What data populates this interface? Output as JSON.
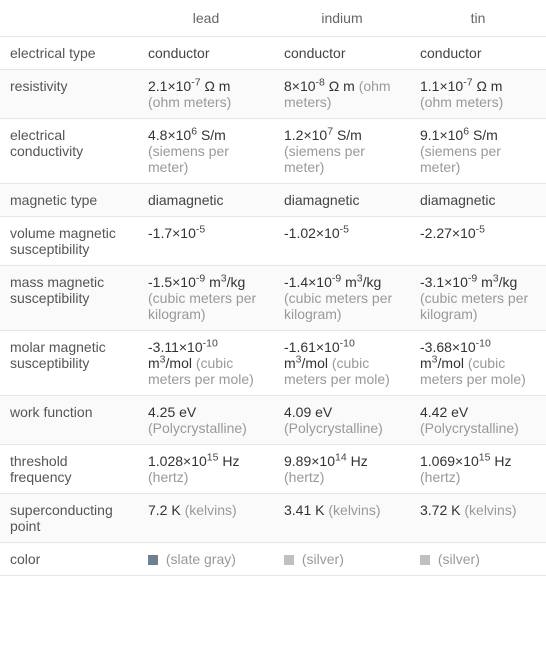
{
  "columns": {
    "col1": "lead",
    "col2": "indium",
    "col3": "tin"
  },
  "rows": {
    "electrical_type": {
      "label": "electrical type",
      "lead": "conductor",
      "indium": "conductor",
      "tin": "conductor"
    },
    "resistivity": {
      "label": "resistivity",
      "lead_main": "2.1×10",
      "lead_exp": "-7",
      "lead_unit1": " Ω m ",
      "lead_unit2": "(ohm meters)",
      "indium_main": "8×10",
      "indium_exp": "-8",
      "indium_unit1": " Ω m ",
      "indium_unit2": "(ohm meters)",
      "tin_main": "1.1×10",
      "tin_exp": "-7",
      "tin_unit1": " Ω m ",
      "tin_unit2": "(ohm meters)"
    },
    "electrical_conductivity": {
      "label": "electrical conductivity",
      "lead_main": "4.8×10",
      "lead_exp": "6",
      "lead_unit1": " S/m ",
      "lead_unit2": "(siemens per meter)",
      "indium_main": "1.2×10",
      "indium_exp": "7",
      "indium_unit1": " S/m ",
      "indium_unit2": "(siemens per meter)",
      "tin_main": "9.1×10",
      "tin_exp": "6",
      "tin_unit1": " S/m ",
      "tin_unit2": "(siemens per meter)"
    },
    "magnetic_type": {
      "label": "magnetic type",
      "lead": "diamagnetic",
      "indium": "diamagnetic",
      "tin": "diamagnetic"
    },
    "volume_magnetic_susceptibility": {
      "label": "volume magnetic susceptibility",
      "lead_main": "-1.7×10",
      "lead_exp": "-5",
      "indium_main": "-1.02×10",
      "indium_exp": "-5",
      "tin_main": "-2.27×10",
      "tin_exp": "-5"
    },
    "mass_magnetic_susceptibility": {
      "label": "mass magnetic susceptibility",
      "lead_main": "-1.5×10",
      "lead_exp": "-9",
      "lead_unit1": " m",
      "lead_exp2": "3",
      "lead_unit2": "/kg ",
      "lead_unit3": "(cubic meters per kilogram)",
      "indium_main": "-1.4×10",
      "indium_exp": "-9",
      "indium_unit1": " m",
      "indium_exp2": "3",
      "indium_unit2": "/kg ",
      "indium_unit3": "(cubic meters per kilogram)",
      "tin_main": "-3.1×10",
      "tin_exp": "-9",
      "tin_unit1": " m",
      "tin_exp2": "3",
      "tin_unit2": "/kg ",
      "tin_unit3": "(cubic meters per kilogram)"
    },
    "molar_magnetic_susceptibility": {
      "label": "molar magnetic susceptibility",
      "lead_main": "-3.11×10",
      "lead_exp": "-10",
      "lead_unit1": " m",
      "lead_exp2": "3",
      "lead_unit2": "/mol ",
      "lead_unit3": "(cubic meters per mole)",
      "indium_main": "-1.61×10",
      "indium_exp": "-10",
      "indium_unit1": " m",
      "indium_exp2": "3",
      "indium_unit2": "/mol ",
      "indium_unit3": "(cubic meters per mole)",
      "tin_main": "-3.68×10",
      "tin_exp": "-10",
      "tin_unit1": " m",
      "tin_exp2": "3",
      "tin_unit2": "/mol ",
      "tin_unit3": "(cubic meters per mole)"
    },
    "work_function": {
      "label": "work function",
      "lead_main": "4.25 eV ",
      "lead_unit": "(Polycrystalline)",
      "indium_main": "4.09 eV ",
      "indium_unit": "(Polycrystalline)",
      "tin_main": "4.42 eV ",
      "tin_unit": "(Polycrystalline)"
    },
    "threshold_frequency": {
      "label": "threshold frequency",
      "lead_main": "1.028×10",
      "lead_exp": "15",
      "lead_unit1": " Hz ",
      "lead_unit2": "(hertz)",
      "indium_main": "9.89×10",
      "indium_exp": "14",
      "indium_unit1": " Hz ",
      "indium_unit2": "(hertz)",
      "tin_main": "1.069×10",
      "tin_exp": "15",
      "tin_unit1": " Hz ",
      "tin_unit2": "(hertz)"
    },
    "superconducting_point": {
      "label": "superconducting point",
      "lead_main": "7.2 K ",
      "lead_unit": "(kelvins)",
      "indium_main": "3.41 K ",
      "indium_unit": "(kelvins)",
      "tin_main": "3.72 K ",
      "tin_unit": "(kelvins)"
    },
    "color": {
      "label": "color",
      "lead_color": "#708090",
      "lead_text": " (slate gray)",
      "indium_color": "#c0c0c0",
      "indium_text": " (silver)",
      "tin_color": "#c0c0c0",
      "tin_text": " (silver)"
    }
  }
}
